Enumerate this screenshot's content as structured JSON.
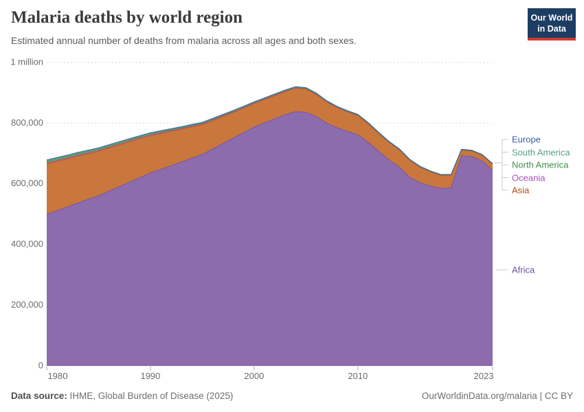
{
  "header": {
    "title": "Malaria deaths by world region",
    "subtitle": "Estimated annual number of deaths from malaria across all ages and both sexes.",
    "logo": {
      "line1": "Our World",
      "line2": "in Data"
    }
  },
  "footer": {
    "source_label": "Data source:",
    "source": " IHME, Global Burden of Disease (2025)",
    "link": "OurWorldinData.org/malaria | CC BY"
  },
  "chart_data": {
    "type": "area",
    "stacked": true,
    "title": "Malaria deaths by world region",
    "xlabel": "",
    "ylabel": "",
    "ylim": [
      0,
      1000000
    ],
    "grid": "dashed-horizontal",
    "legend_position": "right",
    "x": [
      1980,
      1981,
      1982,
      1983,
      1984,
      1985,
      1986,
      1987,
      1988,
      1989,
      1990,
      1991,
      1992,
      1993,
      1994,
      1995,
      1996,
      1997,
      1998,
      1999,
      2000,
      2001,
      2002,
      2003,
      2004,
      2005,
      2006,
      2007,
      2008,
      2009,
      2010,
      2011,
      2012,
      2013,
      2014,
      2015,
      2016,
      2017,
      2018,
      2019,
      2020,
      2021,
      2022,
      2023
    ],
    "series": [
      {
        "name": "Africa",
        "fill": "#8d6cae",
        "line": "#6d4fa1",
        "values": [
          500000,
          512000,
          524000,
          537000,
          549000,
          561000,
          576000,
          591000,
          606000,
          621000,
          636000,
          648000,
          660000,
          672000,
          685000,
          697000,
          715000,
          733000,
          751000,
          769000,
          787000,
          801000,
          815000,
          828000,
          838000,
          836000,
          822000,
          800000,
          785000,
          773000,
          762000,
          737000,
          708000,
          679000,
          656000,
          622000,
          604000,
          593000,
          585000,
          587000,
          693000,
          690000,
          676000,
          644000
        ]
      },
      {
        "name": "Asia",
        "fill": "#c9773d",
        "line": "#b5490f",
        "values": [
          166500,
          163000,
          159000,
          155000,
          151000,
          147000,
          142500,
          138000,
          133500,
          128500,
          123500,
          118500,
          113500,
          108500,
          103500,
          98500,
          94000,
          89500,
          85000,
          81000,
          78000,
          77000,
          76500,
          76500,
          77500,
          77000,
          73000,
          70000,
          66500,
          64500,
          63500,
          61500,
          59000,
          58000,
          56500,
          56000,
          51000,
          47000,
          43500,
          41500,
          18500,
          18500,
          18500,
          20500
        ]
      },
      {
        "name": "Oceania",
        "fill": "#bf86c7",
        "line": "#a652ba",
        "values": [
          2600,
          2600,
          2500,
          2500,
          2400,
          2400,
          2300,
          2300,
          2200,
          2200,
          2100,
          2100,
          2000,
          2000,
          1900,
          1900,
          1800,
          1800,
          1700,
          1700,
          1600,
          1600,
          1500,
          1500,
          1500,
          1400,
          1400,
          1300,
          1300,
          1300,
          1200,
          1200,
          1100,
          1100,
          1100,
          1000,
          1000,
          1000,
          900,
          900,
          900,
          800,
          800,
          800
        ]
      },
      {
        "name": "North America",
        "fill": "#68a76c",
        "line": "#3e8e4a",
        "values": [
          5200,
          5100,
          5000,
          4900,
          4700,
          4500,
          4300,
          4100,
          3900,
          3700,
          3500,
          3300,
          3100,
          2900,
          2700,
          2500,
          2300,
          2100,
          1900,
          1700,
          1500,
          1400,
          1300,
          1200,
          1100,
          1000,
          950,
          900,
          850,
          800,
          750,
          700,
          650,
          600,
          550,
          500,
          450,
          400,
          380,
          360,
          340,
          330,
          320,
          300
        ]
      },
      {
        "name": "South America",
        "fill": "#68a691",
        "line": "#57a084",
        "values": [
          4200,
          4100,
          4000,
          3900,
          3800,
          3700,
          3600,
          3500,
          3400,
          3300,
          3200,
          3100,
          3000,
          2900,
          2800,
          2700,
          2600,
          2500,
          2400,
          2300,
          2200,
          2100,
          2000,
          1950,
          1900,
          1850,
          1800,
          1750,
          1700,
          1650,
          1600,
          1550,
          1500,
          1480,
          1460,
          1440,
          1420,
          1400,
          1380,
          1360,
          1340,
          1320,
          1300,
          1280
        ]
      },
      {
        "name": "Europe",
        "fill": "#7e93c6",
        "line": "#3d5aa5",
        "values": [
          500,
          490,
          480,
          470,
          460,
          450,
          440,
          430,
          420,
          410,
          400,
          390,
          380,
          370,
          360,
          350,
          340,
          330,
          320,
          310,
          300,
          290,
          280,
          270,
          260,
          250,
          240,
          230,
          220,
          210,
          200,
          190,
          185,
          180,
          175,
          170,
          165,
          160,
          155,
          150,
          145,
          140,
          135,
          130
        ]
      }
    ],
    "yticks": [
      {
        "value": 0,
        "label": "0"
      },
      {
        "value": 200000,
        "label": "200,000"
      },
      {
        "value": 400000,
        "label": "400,000"
      },
      {
        "value": 600000,
        "label": "600,000"
      },
      {
        "value": 800000,
        "label": "800,000"
      },
      {
        "value": 1000000,
        "label": "1 million"
      }
    ],
    "xticks": [
      1980,
      1990,
      2000,
      2010,
      2023
    ],
    "legend": [
      {
        "label": "Europe",
        "color": "#3d5aa5"
      },
      {
        "label": "South America",
        "color": "#57a084"
      },
      {
        "label": "North America",
        "color": "#3e8e4a"
      },
      {
        "label": "Oceania",
        "color": "#a652ba"
      },
      {
        "label": "Asia",
        "color": "#b5490f"
      },
      {
        "label": "Africa",
        "color": "#6d4fa1"
      }
    ]
  }
}
